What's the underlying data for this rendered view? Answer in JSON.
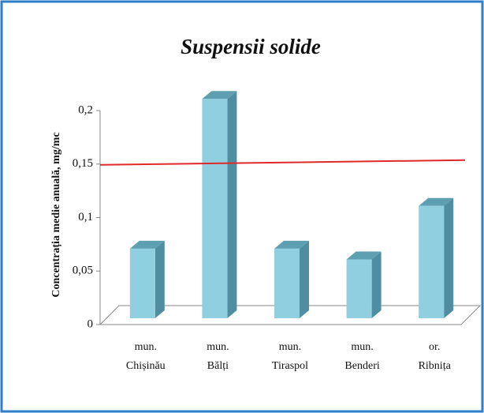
{
  "chart_data": {
    "type": "bar3d",
    "title": "Suspensii solide",
    "y_label": "Concentrația medie anuală, mg/mc",
    "categories": [
      "mun. Chișinău",
      "mun. Bălți",
      "mun. Tiraspol",
      "mun. Benderi",
      "or. Ribnița"
    ],
    "values": [
      0.065,
      0.205,
      0.065,
      0.055,
      0.105
    ],
    "color": "#8fcfe0",
    "ylim": [
      0,
      0.2
    ],
    "yticks": [
      0,
      {
        "value": 0.05,
        "label": "0,05"
      },
      {
        "value": 0.1,
        "label": "0,1"
      },
      {
        "value": 0.15,
        "label": "0,15"
      },
      {
        "value": 0.2,
        "label": "0,2"
      }
    ],
    "reference_line": {
      "value": 0.15,
      "color": "#e02a2a"
    }
  }
}
